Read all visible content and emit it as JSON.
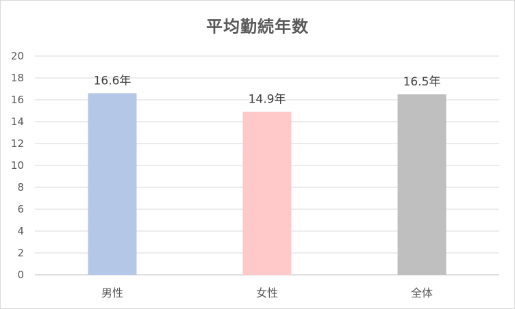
{
  "chart_data": {
    "type": "bar",
    "title": "平均勤続年数",
    "categories": [
      "男性",
      "女性",
      "全体"
    ],
    "values": [
      16.6,
      14.9,
      16.5
    ],
    "data_labels": [
      "16.6年",
      "14.9年",
      "16.5年"
    ],
    "bar_colors": [
      "#b4c7e7",
      "#ffc9c9",
      "#bfbfbf"
    ],
    "ylim": [
      0,
      20
    ],
    "yticks": [
      0,
      2,
      4,
      6,
      8,
      10,
      12,
      14,
      16,
      18,
      20
    ],
    "grid": true,
    "legend": "none",
    "xlabel": "",
    "ylabel": ""
  },
  "colors": {
    "grid": "#d9d9d9",
    "axis": "#bfbfbf",
    "text": "#595959"
  }
}
